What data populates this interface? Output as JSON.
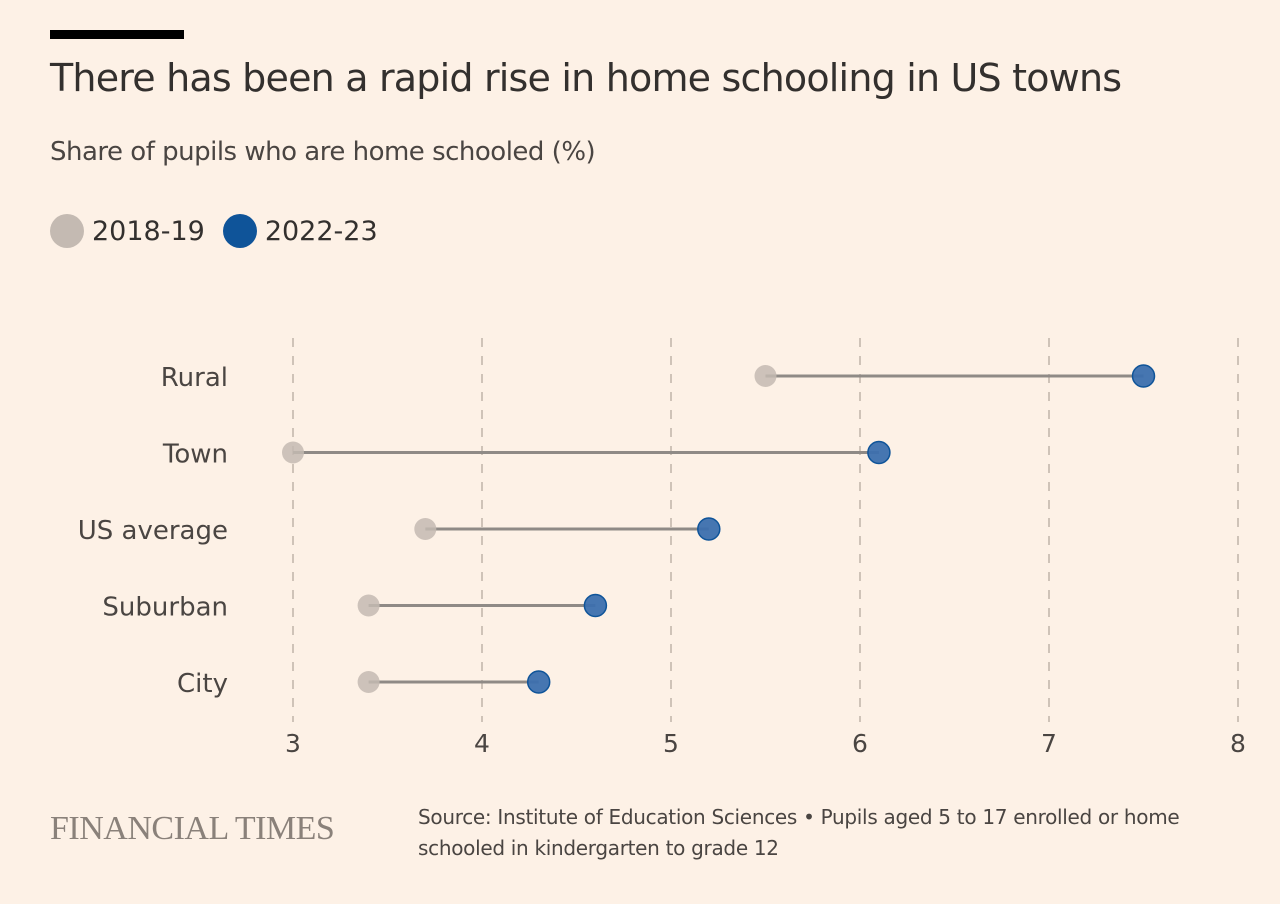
{
  "chart_data": {
    "type": "dumbbell",
    "title": "There has been a rapid rise in home schooling in US towns",
    "subtitle": "Share of pupils who are home schooled (%)",
    "xlabel": "",
    "ylabel": "",
    "xlim": [
      3,
      8
    ],
    "xticks": [
      3,
      4,
      5,
      6,
      7,
      8
    ],
    "grid": "vertical-dashed",
    "legend_position": "top-left",
    "categories": [
      "Rural",
      "Town",
      "US average",
      "Suburban",
      "City"
    ],
    "series": [
      {
        "name": "2018-19",
        "color": "#c4bab2",
        "values": [
          5.5,
          3.0,
          3.7,
          3.4,
          3.4
        ]
      },
      {
        "name": "2022-23",
        "color": "#0f5499",
        "values": [
          7.5,
          6.1,
          5.2,
          4.6,
          4.3
        ]
      }
    ]
  },
  "footer": {
    "logo": "FINANCIAL TIMES",
    "source": "Source: Institute of Education Sciences • Pupils aged 5 to 17 enrolled or home schooled in kindergarten to grade 12"
  }
}
